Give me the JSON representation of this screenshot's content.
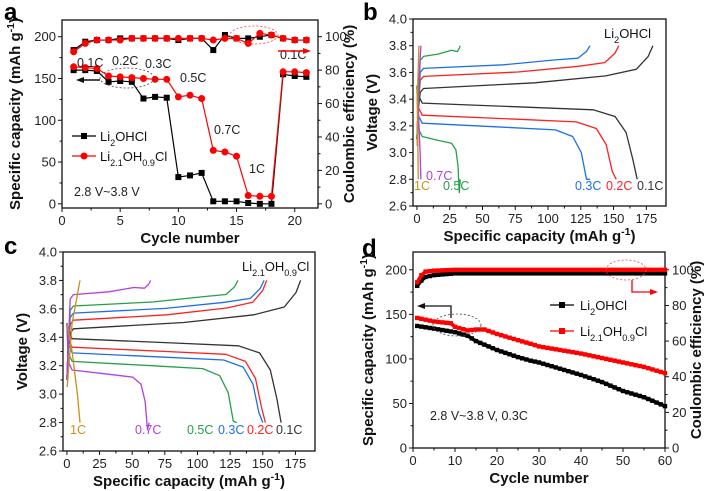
{
  "chart_data": [
    {
      "id": "a",
      "type": "line",
      "panel_label": "a",
      "xlabel": "Cycle number",
      "ylabel": "Specific capacity (mAh g⁻¹)",
      "y2label": "Coulombic efficiency (%)",
      "xlim": [
        0,
        22
      ],
      "ylim": [
        -5,
        220
      ],
      "y2lim": [
        -2.5,
        110
      ],
      "xticks": [
        0,
        5,
        10,
        15,
        20
      ],
      "yticks": [
        0,
        50,
        100,
        150,
        200
      ],
      "y2ticks": [
        0,
        20,
        40,
        60,
        80,
        100
      ],
      "annotation": "2.8 V~3.8 V",
      "rate_labels": [
        "0.1C",
        "0.2C",
        "0.3C",
        "0.5C",
        "0.7C",
        "1C",
        "0.1C"
      ],
      "legend": [
        "Li₂OHCl",
        "Li₂.₁OH₀.₉Cl"
      ],
      "x": [
        1,
        2,
        3,
        4,
        5,
        6,
        7,
        8,
        9,
        10,
        11,
        12,
        13,
        14,
        15,
        16,
        17,
        18,
        19,
        20,
        21
      ],
      "series": [
        {
          "name": "Li2OHCl capacity",
          "axis": "left",
          "color": "#000000",
          "marker": "square",
          "values": [
            160,
            160,
            159,
            146,
            147,
            146,
            126,
            128,
            127,
            32,
            34,
            37,
            3,
            3,
            3,
            1,
            0,
            0,
            155,
            153,
            152
          ]
        },
        {
          "name": "Li2.1OH0.9Cl capacity",
          "axis": "left",
          "color": "#ff0000",
          "marker": "circle",
          "values": [
            164,
            163,
            162,
            153,
            152,
            151,
            150,
            149,
            149,
            128,
            130,
            126,
            64,
            62,
            57,
            10,
            9,
            9,
            158,
            158,
            157
          ]
        },
        {
          "name": "Li2OHCl CE",
          "axis": "right",
          "color": "#000000",
          "marker": "square",
          "values": [
            92,
            97,
            98,
            98,
            99,
            99,
            99,
            99,
            99,
            98,
            99,
            99,
            92,
            101,
            99,
            99,
            100,
            101,
            99,
            98,
            98
          ]
        },
        {
          "name": "Li2.1OH0.9Cl CE",
          "axis": "right",
          "color": "#ff0000",
          "marker": "circle",
          "values": [
            91,
            96,
            98,
            98,
            98,
            99,
            99,
            99,
            99,
            99,
            99,
            99,
            98,
            99,
            99,
            96,
            102,
            101,
            99,
            98,
            98
          ]
        }
      ]
    },
    {
      "id": "b",
      "type": "line",
      "panel_label": "b",
      "title": "Li₂OHCl",
      "xlabel": "Specific capacity (mAh g⁻¹)",
      "ylabel": "Voltage (V)",
      "xlim": [
        -3,
        190
      ],
      "ylim": [
        2.6,
        4.0
      ],
      "xticks": [
        0,
        25,
        50,
        75,
        100,
        125,
        150,
        175
      ],
      "yticks": [
        2.6,
        2.8,
        3.0,
        3.2,
        3.4,
        3.6,
        3.8,
        4.0
      ],
      "series": [
        {
          "name": "0.1C",
          "color": "#333333",
          "charge_capacity": 180,
          "discharge_capacity": 168,
          "charge_plateau": 3.48,
          "discharge_plateau": 3.35
        },
        {
          "name": "0.2C",
          "color": "#ff2020",
          "charge_capacity": 154,
          "discharge_capacity": 152,
          "charge_plateau": 3.57,
          "discharge_plateau": 3.26
        },
        {
          "name": "0.3C",
          "color": "#1e6fe8",
          "charge_capacity": 132,
          "discharge_capacity": 132,
          "charge_plateau": 3.63,
          "discharge_plateau": 3.2
        },
        {
          "name": "0.5C",
          "color": "#22a04a",
          "charge_capacity": 33,
          "discharge_capacity": 33,
          "charge_plateau": 3.72,
          "discharge_plateau": 3.1
        },
        {
          "name": "0.7C",
          "color": "#b040e0",
          "charge_capacity": 3,
          "discharge_capacity": 3,
          "charge_plateau": 3.8,
          "discharge_plateau": 2.8
        },
        {
          "name": "1C",
          "color": "#c8901a",
          "charge_capacity": 1.5,
          "discharge_capacity": 1,
          "charge_plateau": 3.8,
          "discharge_plateau": 2.8
        }
      ]
    },
    {
      "id": "c",
      "type": "line",
      "panel_label": "c",
      "title": "Li₂.₁OH₀.₉Cl",
      "xlabel": "Specific capacity (mAh g⁻¹)",
      "ylabel": "Voltage (V)",
      "xlim": [
        -3,
        190
      ],
      "ylim": [
        2.6,
        4.0
      ],
      "xticks": [
        0,
        25,
        50,
        75,
        100,
        125,
        150,
        175
      ],
      "yticks": [
        2.6,
        2.8,
        3.0,
        3.2,
        3.4,
        3.6,
        3.8,
        4.0
      ],
      "series": [
        {
          "name": "0.1C",
          "color": "#333333",
          "charge_capacity": 179,
          "discharge_capacity": 164,
          "charge_plateau": 3.46,
          "discharge_plateau": 3.37
        },
        {
          "name": "0.2C",
          "color": "#ff2020",
          "charge_capacity": 153,
          "discharge_capacity": 152,
          "charge_plateau": 3.52,
          "discharge_plateau": 3.31
        },
        {
          "name": "0.3C",
          "color": "#1e6fe8",
          "charge_capacity": 151,
          "discharge_capacity": 150,
          "charge_plateau": 3.57,
          "discharge_plateau": 3.27
        },
        {
          "name": "0.5C",
          "color": "#22a04a",
          "charge_capacity": 131,
          "discharge_capacity": 130,
          "charge_plateau": 3.62,
          "discharge_plateau": 3.21
        },
        {
          "name": "0.7C",
          "color": "#b040e0",
          "charge_capacity": 64,
          "discharge_capacity": 63,
          "charge_plateau": 3.7,
          "discharge_plateau": 3.15
        },
        {
          "name": "1C",
          "color": "#c8901a",
          "charge_capacity": 10,
          "discharge_capacity": 10,
          "charge_plateau": 3.75,
          "discharge_plateau": 3.0
        }
      ]
    },
    {
      "id": "d",
      "type": "line",
      "panel_label": "d",
      "xlabel": "Cycle number",
      "ylabel": "Specific capacity (mAh g⁻¹)",
      "y2label": "Coulombic efficiency (%)",
      "xlim": [
        0,
        60
      ],
      "ylim": [
        0,
        220
      ],
      "y2lim": [
        0,
        110
      ],
      "xticks": [
        0,
        10,
        20,
        30,
        40,
        50,
        60
      ],
      "yticks": [
        0,
        50,
        100,
        150,
        200
      ],
      "y2ticks": [
        0,
        20,
        40,
        60,
        80,
        100
      ],
      "annotation": "2.8 V~3.8 V, 0.3C",
      "legend": [
        "Li₂OHCl",
        "Li₂.₁OH₀.₉Cl"
      ],
      "series": [
        {
          "name": "Li2OHCl capacity",
          "axis": "left",
          "color": "#000000",
          "x": [
            1,
            5,
            10,
            13,
            15,
            18,
            20,
            25,
            28,
            30,
            35,
            40,
            45,
            50,
            55,
            60
          ],
          "values": [
            137,
            134,
            130,
            126,
            120,
            114,
            110,
            102,
            98,
            96,
            89,
            82,
            74,
            64,
            57,
            47
          ]
        },
        {
          "name": "Li2.1OH0.9Cl capacity",
          "axis": "left",
          "color": "#ff0000",
          "x": [
            1,
            5,
            9,
            10,
            13,
            15,
            17,
            20,
            25,
            28,
            30,
            35,
            40,
            45,
            50,
            55,
            60
          ],
          "values": [
            146,
            142,
            140,
            136,
            132,
            133,
            133,
            128,
            121,
            117,
            114,
            110,
            106,
            101,
            96,
            91,
            84
          ]
        },
        {
          "name": "Li2OHCl CE",
          "axis": "right",
          "color": "#000000",
          "x": [
            1,
            2,
            3,
            5,
            10,
            20,
            30,
            40,
            50,
            60
          ],
          "values": [
            91,
            94,
            96,
            97,
            98,
            98,
            98,
            98,
            98,
            98
          ]
        },
        {
          "name": "Li2.1OH0.9Cl CE",
          "axis": "right",
          "color": "#ff0000",
          "x": [
            1,
            2,
            3,
            5,
            10,
            20,
            30,
            40,
            50,
            60
          ],
          "values": [
            93,
            97,
            99,
            99.5,
            100,
            100,
            100,
            100,
            100,
            100
          ]
        }
      ]
    }
  ]
}
